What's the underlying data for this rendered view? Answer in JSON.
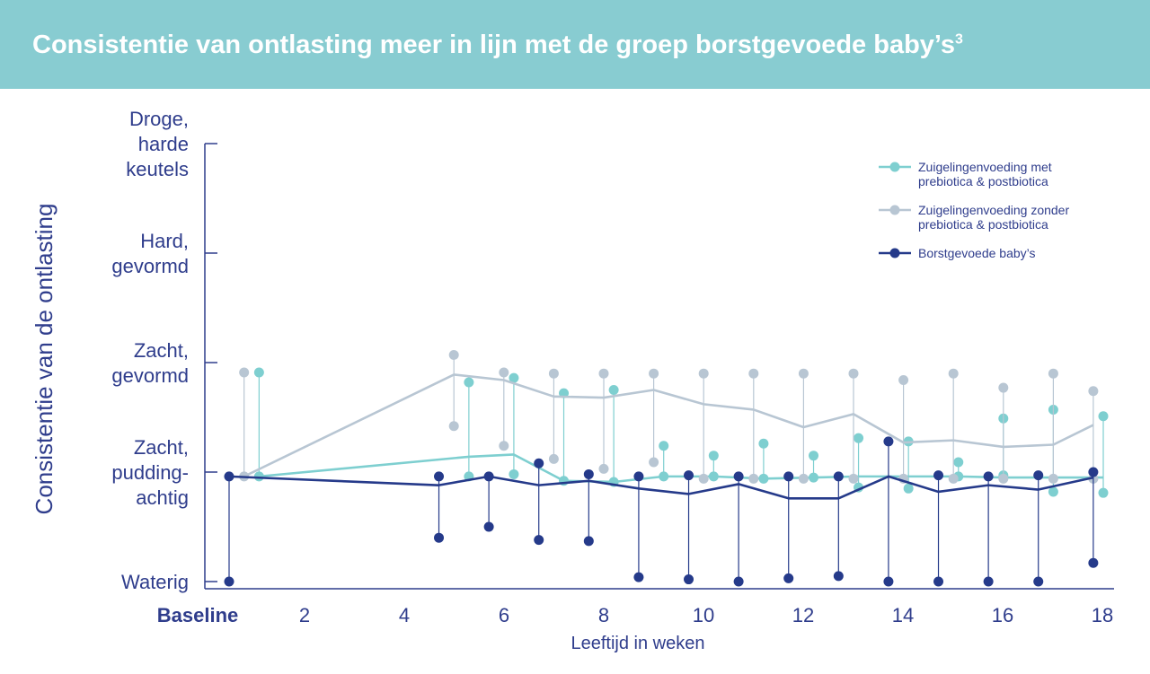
{
  "header": {
    "title": "Consistentie van ontlasting meer in lijn met de groep borstgevoede baby’s",
    "title_sup": "3",
    "background": "#88ccd1"
  },
  "chart_data": {
    "type": "line",
    "title": "Consistentie van ontlasting meer in lijn met de groep borstgevoede baby’s³",
    "xlabel": "Leeftijd in weken",
    "ylabel": "Consistentie van de ontlasting",
    "x_ticks": [
      {
        "value": 0,
        "label": "Baseline"
      },
      {
        "value": 2,
        "label": "2"
      },
      {
        "value": 4,
        "label": "4"
      },
      {
        "value": 6,
        "label": "6"
      },
      {
        "value": 8,
        "label": "8"
      },
      {
        "value": 10,
        "label": "10"
      },
      {
        "value": 12,
        "label": "12"
      },
      {
        "value": 14,
        "label": "14"
      },
      {
        "value": 16,
        "label": "16"
      },
      {
        "value": 18,
        "label": "18"
      }
    ],
    "xlim": [
      0,
      18
    ],
    "y_categories": [
      {
        "value": 1,
        "label": [
          "Waterig"
        ]
      },
      {
        "value": 2,
        "label": [
          "Zacht,",
          "pudding-",
          "achtig"
        ]
      },
      {
        "value": 3,
        "label": [
          "Zacht,",
          "gevormd"
        ]
      },
      {
        "value": 4,
        "label": [
          "Hard,",
          "gevormd"
        ]
      },
      {
        "value": 5,
        "label": [
          "Droge,",
          "harde",
          "keutels"
        ]
      }
    ],
    "ylim": [
      1,
      5
    ],
    "legend_position": "top-right",
    "series": [
      {
        "name": "Zuigelingenvoeding met prebiotica & postbiotica",
        "color": "#7ecfd0",
        "x": [
          0.6,
          4.8,
          5.7,
          6.7,
          7.7,
          8.7,
          9.7,
          10.7,
          11.7,
          12.6,
          13.6,
          14.6,
          15.5,
          16.5,
          17.5
        ],
        "y": [
          1.96,
          2.14,
          2.16,
          1.92,
          1.91,
          1.96,
          1.96,
          1.94,
          1.95,
          1.96,
          1.96,
          1.96,
          1.95,
          1.95,
          1.95
        ],
        "upper": [
          2.91,
          2.82,
          2.86,
          2.72,
          2.75,
          2.24,
          2.15,
          2.26,
          2.15,
          2.31,
          2.28,
          2.09,
          2.49,
          2.57,
          2.51
        ],
        "lower": [
          1.96,
          1.96,
          1.98,
          1.92,
          1.91,
          1.96,
          1.96,
          1.94,
          1.95,
          1.86,
          1.85,
          1.96,
          1.97,
          1.82,
          1.81
        ]
      },
      {
        "name": "Zuigelingenvoeding zonder prebiotica & postbiotica",
        "color": "#b8c6d3",
        "x": [
          0.3,
          4.5,
          5.5,
          6.5,
          7.5,
          8.5,
          9.5,
          10.5,
          11.5,
          12.5,
          13.5,
          14.5,
          15.5,
          16.5,
          17.3
        ],
        "y": [
          1.96,
          2.89,
          2.84,
          2.69,
          2.68,
          2.75,
          2.62,
          2.57,
          2.41,
          2.53,
          2.27,
          2.29,
          2.23,
          2.25,
          2.43
        ],
        "upper": [
          2.91,
          3.07,
          2.91,
          2.9,
          2.9,
          2.9,
          2.9,
          2.9,
          2.9,
          2.9,
          2.84,
          2.9,
          2.77,
          2.9,
          2.74
        ],
        "lower": [
          1.96,
          2.42,
          2.24,
          2.12,
          2.03,
          2.09,
          1.94,
          1.94,
          1.94,
          1.94,
          1.94,
          1.94,
          1.94,
          1.94,
          1.94
        ]
      },
      {
        "name": "Borstgevoede baby’s",
        "color": "#253a8a",
        "x": [
          0,
          4.2,
          5.2,
          6.2,
          7.2,
          8.2,
          9.2,
          10.2,
          11.2,
          12.2,
          13.2,
          14.2,
          15.2,
          16.2,
          17.3
        ],
        "y": [
          1.96,
          1.88,
          1.96,
          1.88,
          1.92,
          1.85,
          1.8,
          1.89,
          1.76,
          1.76,
          1.96,
          1.82,
          1.88,
          1.84,
          1.95
        ],
        "upper": [
          1.96,
          1.96,
          1.96,
          2.08,
          1.98,
          1.96,
          1.97,
          1.96,
          1.96,
          1.96,
          2.28,
          1.97,
          1.96,
          1.97,
          2.0
        ],
        "lower": [
          1.0,
          1.4,
          1.5,
          1.38,
          1.37,
          1.04,
          1.02,
          1.0,
          1.03,
          1.05,
          1.0,
          1.0,
          1.0,
          1.0,
          1.17
        ]
      }
    ]
  }
}
